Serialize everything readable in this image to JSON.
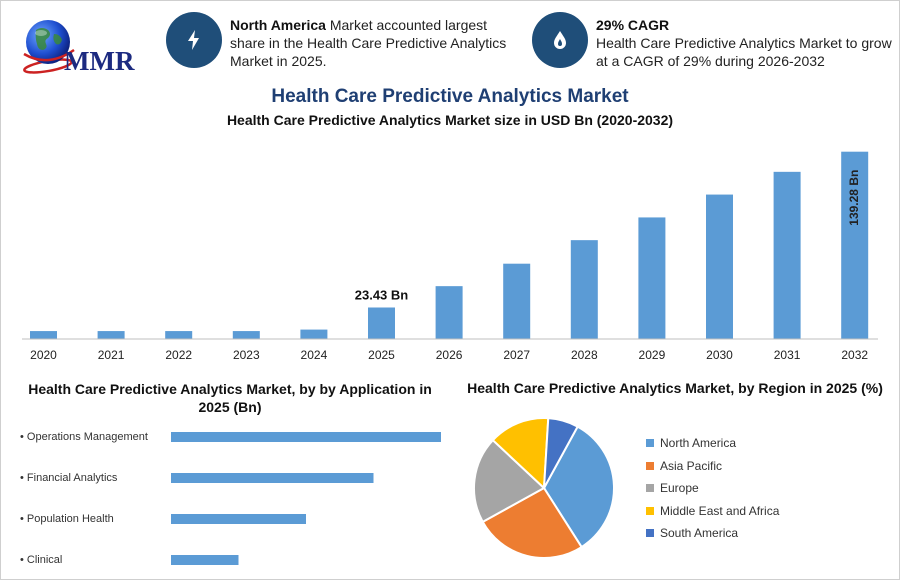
{
  "header": {
    "brand": "MMR",
    "fact_1": {
      "icon": "lightning-bolt-icon",
      "bold": "North America",
      "text": " Market accounted largest share in the Health Care Predictive Analytics Market in 2025."
    },
    "fact_2": {
      "icon": "flame-drop-icon",
      "bold": "29% CAGR",
      "text": "Health Care Predictive Analytics Market to grow at a CAGR of 29% during 2026-2032"
    },
    "title": "Health Care Predictive Analytics Market"
  },
  "colors": {
    "bar": "#5b9bd5",
    "title": "#1f3f73",
    "icon_circle": "#1f4e79"
  },
  "chart_data": [
    {
      "type": "bar",
      "title": "Health Care Predictive Analytics Market size in USD Bn (2020-2032)",
      "categories": [
        "2020",
        "2021",
        "2022",
        "2023",
        "2024",
        "2025",
        "2026",
        "2027",
        "2028",
        "2029",
        "2030",
        "2031",
        "2032"
      ],
      "values": [
        5.9,
        5.9,
        5.9,
        5.9,
        7.0,
        23.43,
        39.3,
        56.0,
        73.5,
        90.4,
        107.4,
        124.3,
        139.28
      ],
      "data_labels": [
        {
          "index": 5,
          "text": "23.43 Bn",
          "orientation": "horizontal"
        },
        {
          "index": 12,
          "text": "139.28 Bn",
          "orientation": "vertical"
        }
      ],
      "xlabel": "",
      "ylabel": "",
      "ylim": [
        0,
        145
      ],
      "grid": false,
      "legend": "none"
    },
    {
      "type": "bar",
      "orientation": "horizontal",
      "title": "Health Care Predictive Analytics Market, by by Application in 2025 (Bn)",
      "categories": [
        "Operations Management",
        "Financial Analytics",
        "Population Health",
        "Clinical"
      ],
      "values": [
        10.0,
        7.5,
        5.0,
        2.5
      ],
      "xlim": [
        0,
        10.0
      ],
      "grid": false,
      "legend": "none"
    },
    {
      "type": "pie",
      "title": "Health Care Predictive Analytics Market, by Region in 2025 (%)",
      "labels": [
        "North America",
        "Asia Pacific",
        "Europe",
        "Middle East and Africa",
        "South America"
      ],
      "values": [
        33,
        26,
        20,
        14,
        7
      ],
      "colors": [
        "#5b9bd5",
        "#ed7d31",
        "#a5a5a5",
        "#ffc000",
        "#4472c4"
      ],
      "legend": "right"
    }
  ]
}
